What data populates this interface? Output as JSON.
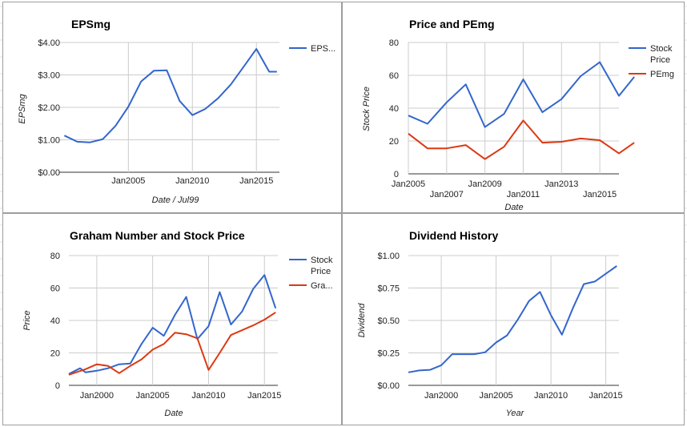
{
  "colors": {
    "blue": "#3366cc",
    "red": "#dc3912",
    "grid": "#cccccc",
    "baseline": "#333333",
    "panel_border": "#9e9e9e"
  },
  "chart_data": [
    {
      "id": "eps",
      "type": "line",
      "title": "EPSmg",
      "xlabel": "Date / Jul99",
      "ylabel": "EPSmg",
      "xlim": [
        1999.6,
        2016.8
      ],
      "ylim": [
        0,
        4
      ],
      "yticks": [
        0,
        1,
        2,
        3,
        4
      ],
      "ytick_labels": [
        "$0.00",
        "$1.00",
        "$2.00",
        "$3.00",
        "$4.00"
      ],
      "xticks": [
        {
          "v": 2005,
          "label": "Jan2005"
        },
        {
          "v": 2010,
          "label": "Jan2010"
        },
        {
          "v": 2015,
          "label": "Jan2015"
        }
      ],
      "xgrid": [
        2005,
        2010,
        2015
      ],
      "grid": true,
      "legend_position": "right",
      "series": [
        {
          "name": "EPS...",
          "color": "#3366cc",
          "x": [
            2000,
            2001,
            2002,
            2003,
            2004,
            2005,
            2006,
            2007,
            2008,
            2009,
            2010,
            2011,
            2012,
            2013,
            2014,
            2015,
            2016,
            2016.6
          ],
          "y": [
            1.13,
            0.94,
            0.92,
            1.02,
            1.43,
            2.02,
            2.8,
            3.13,
            3.14,
            2.2,
            1.76,
            1.95,
            2.28,
            2.7,
            3.25,
            3.8,
            3.1,
            3.1
          ]
        }
      ]
    },
    {
      "id": "price_pe",
      "type": "line",
      "title": "Price and PEmg",
      "xlabel": "Date",
      "ylabel": "Stock Price",
      "xlim": [
        2005,
        2016
      ],
      "ylim": [
        0,
        80
      ],
      "yticks": [
        0,
        20,
        40,
        60,
        80
      ],
      "ytick_labels": [
        "0",
        "20",
        "40",
        "60",
        "80"
      ],
      "xticks": [
        {
          "v": 2005,
          "label": "Jan2005",
          "row": 0
        },
        {
          "v": 2007,
          "label": "Jan2007",
          "row": 1
        },
        {
          "v": 2009,
          "label": "Jan2009",
          "row": 0
        },
        {
          "v": 2011,
          "label": "Jan2011",
          "row": 1
        },
        {
          "v": 2013,
          "label": "Jan2013",
          "row": 0
        },
        {
          "v": 2015,
          "label": "Jan2015",
          "row": 1
        }
      ],
      "xgrid": [
        2005,
        2007,
        2009,
        2011,
        2013,
        2015
      ],
      "grid": true,
      "legend_position": "right",
      "series": [
        {
          "name_lines": [
            "Stock",
            "Price"
          ],
          "color": "#3366cc",
          "x": [
            2005,
            2006,
            2007,
            2008,
            2009,
            2010,
            2011,
            2012,
            2013,
            2014,
            2015,
            2016,
            2016.8
          ],
          "y": [
            35.5,
            30.5,
            43.5,
            54.5,
            28.5,
            36.5,
            57.5,
            37.5,
            45.5,
            59.5,
            68,
            47.5,
            59
          ]
        },
        {
          "name_lines": [
            "PEmg"
          ],
          "color": "#dc3912",
          "x": [
            2005,
            2006,
            2007,
            2008,
            2009,
            2010,
            2011,
            2012,
            2013,
            2014,
            2015,
            2016,
            2016.8
          ],
          "y": [
            24.5,
            15.5,
            15.5,
            17.5,
            9,
            16.5,
            32.5,
            19,
            19.5,
            21.5,
            20.5,
            12.5,
            19
          ]
        }
      ]
    },
    {
      "id": "graham",
      "type": "line",
      "title": "Graham Number and Stock Price",
      "xlabel": "Date",
      "ylabel": "Price",
      "xlim": [
        1997.5,
        2016.2
      ],
      "ylim": [
        0,
        80
      ],
      "yticks": [
        0,
        20,
        40,
        60,
        80
      ],
      "ytick_labels": [
        "0",
        "20",
        "40",
        "60",
        "80"
      ],
      "xticks": [
        {
          "v": 2000,
          "label": "Jan2000"
        },
        {
          "v": 2005,
          "label": "Jan2005"
        },
        {
          "v": 2010,
          "label": "Jan2010"
        },
        {
          "v": 2015,
          "label": "Jan2015"
        }
      ],
      "xgrid": [
        2000,
        2005,
        2010,
        2015
      ],
      "grid": true,
      "legend_position": "right",
      "series": [
        {
          "name_lines": [
            "Stock",
            "Price"
          ],
          "color": "#3366cc",
          "x": [
            1997.5,
            1998.5,
            1999,
            2000,
            2001,
            2002,
            2003,
            2004,
            2005,
            2006,
            2007,
            2008,
            2009,
            2010,
            2011,
            2012,
            2013,
            2014,
            2015,
            2016
          ],
          "y": [
            7,
            10.5,
            8,
            9,
            10.5,
            13,
            13.5,
            25.5,
            35.5,
            30.5,
            43.5,
            54.5,
            28.5,
            36.5,
            57.5,
            37.5,
            45.5,
            59.5,
            68,
            47.5
          ]
        },
        {
          "name_lines": [
            "Gra..."
          ],
          "color": "#dc3912",
          "x": [
            1997.5,
            1999,
            2000,
            2001,
            2002,
            2003,
            2004,
            2005,
            2006,
            2007,
            2008,
            2009,
            2010,
            2011,
            2012,
            2013,
            2014,
            2015,
            2016
          ],
          "y": [
            6.5,
            10,
            13,
            12,
            7.5,
            12,
            16,
            22,
            25.5,
            32.5,
            31.5,
            29,
            9.5,
            20,
            31,
            34,
            37,
            40.5,
            45
          ]
        }
      ]
    },
    {
      "id": "dividend",
      "type": "line",
      "title": "Dividend History",
      "xlabel": "Year",
      "ylabel": "Dividend",
      "xlim": [
        1997,
        2016.2
      ],
      "ylim": [
        0,
        1
      ],
      "yticks": [
        0,
        0.25,
        0.5,
        0.75,
        1
      ],
      "ytick_labels": [
        "$0.00",
        "$0.25",
        "$0.50",
        "$0.75",
        "$1.00"
      ],
      "xticks": [
        {
          "v": 2000,
          "label": "Jan2000"
        },
        {
          "v": 2005,
          "label": "Jan2005"
        },
        {
          "v": 2010,
          "label": "Jan2010"
        },
        {
          "v": 2015,
          "label": "Jan2015"
        }
      ],
      "xgrid": [
        2000,
        2005,
        2010,
        2015
      ],
      "grid": true,
      "legend_position": "none",
      "series": [
        {
          "color": "#3366cc",
          "x": [
            1997,
            1998,
            1999,
            2000,
            2001,
            2002,
            2003,
            2004,
            2005,
            2006,
            2007,
            2008,
            2009,
            2010,
            2011,
            2012,
            2013,
            2014,
            2015,
            2016
          ],
          "y": [
            0.1,
            0.115,
            0.12,
            0.155,
            0.24,
            0.24,
            0.24,
            0.255,
            0.33,
            0.385,
            0.51,
            0.65,
            0.72,
            0.54,
            0.39,
            0.595,
            0.78,
            0.8,
            0.86,
            0.92
          ]
        }
      ]
    }
  ]
}
